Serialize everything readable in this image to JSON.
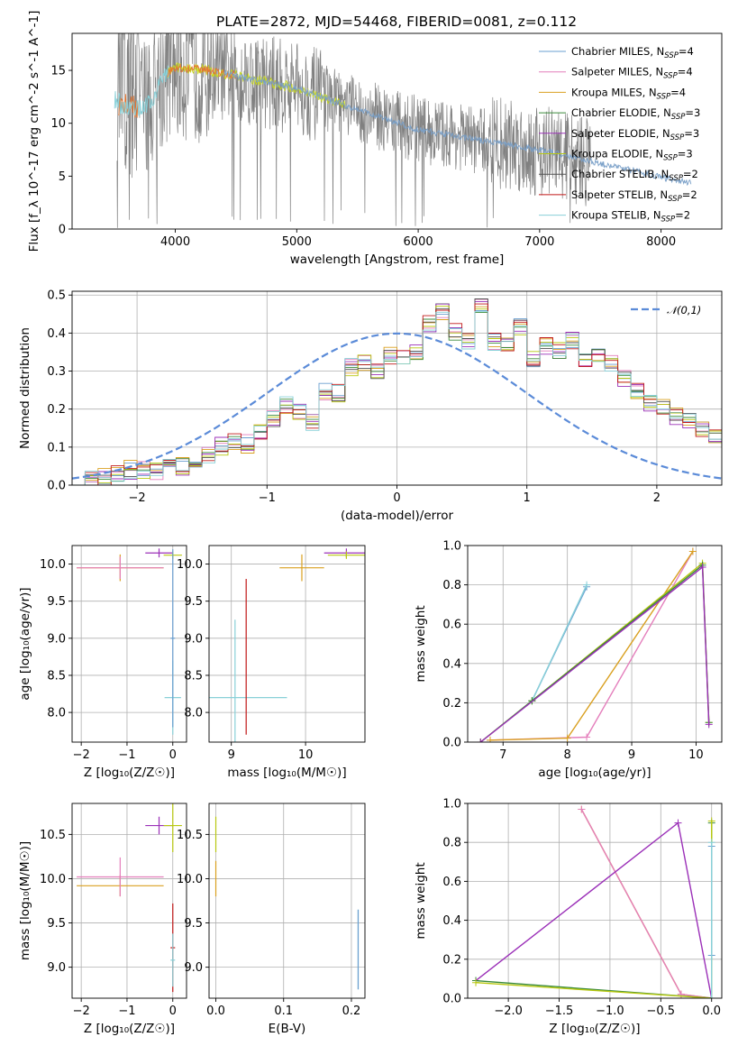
{
  "title": "PLATE=2872, MJD=54468, FIBERID=0081, z=0.112",
  "colors": {
    "spectrum": "#808080",
    "models": [
      "#6a9fd0",
      "#e47fbc",
      "#d9a020",
      "#3a8a3a",
      "#9b30b8",
      "#b8c810",
      "#505050",
      "#c01818",
      "#88d0d8"
    ],
    "highlight_orange": "#e57530",
    "normal": "#5b8bd8"
  },
  "chart_data": [
    {
      "id": "spectrum",
      "type": "line",
      "xlabel": "wavelength [Angstrom, rest frame]",
      "ylabel": "Flux [f_λ 10^-17 erg cm^-2 s^-1 A^-1]",
      "xlim": [
        3150,
        8500
      ],
      "ylim": [
        0,
        18.5
      ],
      "xticks": [
        4000,
        5000,
        6000,
        7000,
        8000
      ],
      "yticks": [
        0,
        5,
        10,
        15
      ],
      "grid": false,
      "legend_position": "top-right",
      "legend": [
        {
          "label": "Chabrier MILES, N",
          "sub": "SSP",
          "suffix": "=4"
        },
        {
          "label": "Salpeter MILES, N",
          "sub": "SSP",
          "suffix": "=4"
        },
        {
          "label": "Kroupa MILES, N",
          "sub": "SSP",
          "suffix": "=4"
        },
        {
          "label": "Chabrier ELODIE, N",
          "sub": "SSP",
          "suffix": "=3"
        },
        {
          "label": "Salpeter ELODIE, N",
          "sub": "SSP",
          "suffix": "=3"
        },
        {
          "label": "Kroupa ELODIE, N",
          "sub": "SSP",
          "suffix": "=3"
        },
        {
          "label": "Chabrier STELIB, N",
          "sub": "SSP",
          "suffix": "=2"
        },
        {
          "label": "Salpeter STELIB, N",
          "sub": "SSP",
          "suffix": "=2"
        },
        {
          "label": "Kroupa STELIB, N",
          "sub": "SSP",
          "suffix": "=2"
        }
      ],
      "model_continuum": {
        "x": [
          3500,
          3550,
          3650,
          3700,
          3800,
          3900,
          4000,
          4200,
          4500,
          5000,
          5500,
          6000,
          6500,
          7000,
          7500,
          8000,
          8250
        ],
        "y": [
          12.3,
          11.8,
          11.4,
          11.6,
          11.9,
          14.5,
          15.3,
          15.1,
          14.5,
          13.3,
          11.3,
          9.4,
          8.4,
          7.5,
          6.2,
          4.9,
          4.4
        ]
      }
    },
    {
      "id": "residual-histogram",
      "type": "line",
      "xlabel": "(data-model)/error",
      "ylabel": "Normed distribution",
      "xlim": [
        -2.5,
        2.5
      ],
      "ylim": [
        0,
        0.51
      ],
      "xticks": [
        -2,
        -1,
        0,
        1,
        2
      ],
      "yticks": [
        0.0,
        0.1,
        0.2,
        0.3,
        0.4,
        0.5
      ],
      "grid": true,
      "legend_position": "top-right",
      "legend": [
        "𝒩(0,1)"
      ],
      "bin_width": 0.1,
      "bin_start": -2.5,
      "hist_values": [
        0.02,
        0.02,
        0.02,
        0.03,
        0.04,
        0.04,
        0.04,
        0.05,
        0.05,
        0.07,
        0.08,
        0.1,
        0.11,
        0.11,
        0.14,
        0.17,
        0.21,
        0.19,
        0.17,
        0.25,
        0.24,
        0.31,
        0.32,
        0.3,
        0.34,
        0.34,
        0.35,
        0.42,
        0.46,
        0.4,
        0.38,
        0.47,
        0.38,
        0.37,
        0.42,
        0.33,
        0.37,
        0.35,
        0.38,
        0.33,
        0.34,
        0.32,
        0.28,
        0.25,
        0.22,
        0.2,
        0.18,
        0.17,
        0.15,
        0.13,
        0.12,
        0.1,
        0.1,
        0.09,
        0.08,
        0.06,
        0.06,
        0.05,
        0.04,
        0.04,
        0.03,
        0.03,
        0.03,
        0.03,
        0.02,
        0.02,
        0.02,
        0.02,
        0.02,
        0.02
      ]
    },
    {
      "id": "age-vs-Z",
      "type": "scatter",
      "xlabel": "Z [log₁₀(Z/Z☉)]",
      "ylabel": "age  [log₁₀(age/yr)]",
      "xlim": [
        -2.2,
        0.3
      ],
      "ylim": [
        7.6,
        10.25
      ],
      "xticks": [
        -2,
        -1,
        0
      ],
      "yticks": [
        8.0,
        8.5,
        9.0,
        9.5,
        10.0
      ],
      "grid": true,
      "points": [
        {
          "x": -1.15,
          "y": 9.95,
          "xerr": 0.95,
          "yerr": 0.18,
          "c": 2
        },
        {
          "x": -1.15,
          "y": 9.95,
          "xerr": 0.95,
          "yerr": 0.15,
          "c": 1
        },
        {
          "x": -0.3,
          "y": 10.15,
          "xerr": 0.3,
          "yerr": 0.06,
          "c": 4
        },
        {
          "x": 0.0,
          "y": 10.12,
          "xerr": 0.2,
          "yerr": 0.05,
          "c": 5
        },
        {
          "x": 0.0,
          "y": 8.2,
          "xerr": 0.18,
          "yerr": 0.5,
          "c": 8
        },
        {
          "x": 0.0,
          "y": 9.0,
          "xerr": 0.05,
          "yerr": 1.2,
          "c": 0
        }
      ]
    },
    {
      "id": "age-vs-mass",
      "type": "scatter",
      "xlabel": "mass [log₁₀(M/M☉)]",
      "ylabel": "",
      "xlim": [
        8.7,
        10.8
      ],
      "ylim": [
        7.6,
        10.25
      ],
      "xticks": [
        9,
        10
      ],
      "yticks": [
        8.0,
        8.5,
        9.0,
        9.5,
        10.0
      ],
      "grid": true,
      "points": [
        {
          "x": 9.05,
          "y": 8.2,
          "xerr": 0.7,
          "yerr": 1.05,
          "c": 8
        },
        {
          "x": 9.2,
          "y": 8.75,
          "xerr": 0.0,
          "yerr": 1.05,
          "c": 7
        },
        {
          "x": 9.95,
          "y": 9.95,
          "xerr": 0.3,
          "yerr": 0.18,
          "c": 2
        },
        {
          "x": 10.55,
          "y": 10.15,
          "xerr": 0.3,
          "yerr": 0.06,
          "c": 4
        },
        {
          "x": 10.55,
          "y": 10.12,
          "xerr": 0.25,
          "yerr": 0.05,
          "c": 5
        }
      ]
    },
    {
      "id": "weight-vs-age",
      "type": "line",
      "xlabel": "age  [log₁₀(age/yr)]",
      "ylabel": "mass weight",
      "xlim": [
        6.45,
        10.4
      ],
      "ylim": [
        0,
        1.0
      ],
      "xticks": [
        7,
        8,
        9,
        10
      ],
      "yticks": [
        0.0,
        0.2,
        0.4,
        0.6,
        0.8,
        1.0
      ],
      "grid": true,
      "series": [
        {
          "c": 0,
          "x": [
            7.45,
            8.3
          ],
          "y": [
            0.21,
            0.79
          ]
        },
        {
          "c": 8,
          "x": [
            7.45,
            8.3
          ],
          "y": [
            0.21,
            0.8
          ]
        },
        {
          "c": 1,
          "x": [
            6.8,
            8.3,
            9.95
          ],
          "y": [
            0.01,
            0.025,
            0.97
          ]
        },
        {
          "c": 2,
          "x": [
            6.8,
            8.0,
            9.95
          ],
          "y": [
            0.01,
            0.02,
            0.97
          ]
        },
        {
          "c": 5,
          "x": [
            6.65,
            7.45,
            10.1,
            10.2
          ],
          "y": [
            0.0,
            0.21,
            0.91,
            0.1
          ]
        },
        {
          "c": 3,
          "x": [
            6.65,
            7.45,
            10.1,
            10.2
          ],
          "y": [
            0.0,
            0.21,
            0.9,
            0.1
          ]
        },
        {
          "c": 4,
          "x": [
            6.65,
            10.1,
            10.2
          ],
          "y": [
            0.0,
            0.89,
            0.09
          ]
        }
      ]
    },
    {
      "id": "mass-vs-Z",
      "type": "scatter",
      "xlabel": "Z [log₁₀(Z/Z☉)]",
      "ylabel": "mass [log₁₀(M/M☉)]",
      "xlim": [
        -2.2,
        0.3
      ],
      "ylim": [
        8.65,
        10.85
      ],
      "xticks": [
        -2,
        -1,
        0
      ],
      "yticks": [
        9.0,
        9.5,
        10.0,
        10.5
      ],
      "grid": true,
      "points": [
        {
          "x": -1.15,
          "y": 9.92,
          "xerr": 0.95,
          "yerr": 0.12,
          "c": 2
        },
        {
          "x": -1.15,
          "y": 10.02,
          "xerr": 0.95,
          "yerr": 0.22,
          "c": 1
        },
        {
          "x": -0.3,
          "y": 10.6,
          "xerr": 0.3,
          "yerr": 0.1,
          "c": 4
        },
        {
          "x": 0.0,
          "y": 10.6,
          "xerr": 0.2,
          "yerr": 0.3,
          "c": 5
        },
        {
          "x": 0.0,
          "y": 9.22,
          "xerr": 0.05,
          "yerr": 0.5,
          "c": 7
        },
        {
          "x": 0.0,
          "y": 9.08,
          "xerr": 0.05,
          "yerr": 0.3,
          "c": 8
        }
      ]
    },
    {
      "id": "mass-vs-ebv",
      "type": "scatter",
      "xlabel": "E(B-V)",
      "ylabel": "",
      "xlim": [
        -0.01,
        0.22
      ],
      "ylim": [
        8.65,
        10.85
      ],
      "xticks": [
        0.0,
        0.1,
        0.2
      ],
      "yticks": [
        9.0,
        9.5,
        10.0,
        10.5
      ],
      "grid": true,
      "points": [
        {
          "x": 0.0,
          "y": 10.5,
          "xerr": 0.0,
          "yerr": 0.2,
          "c": 5
        },
        {
          "x": 0.0,
          "y": 10.0,
          "xerr": 0.0,
          "yerr": 0.2,
          "c": 2
        },
        {
          "x": 0.21,
          "y": 9.2,
          "xerr": 0.0,
          "yerr": 0.45,
          "c": 8
        },
        {
          "x": 0.21,
          "y": 9.2,
          "xerr": 0.0,
          "yerr": 0.45,
          "c": 0
        }
      ]
    },
    {
      "id": "weight-vs-Z",
      "type": "line",
      "xlabel": "Z [log₁₀(Z/Z☉)]",
      "ylabel": "mass weight",
      "xlim": [
        -2.4,
        0.1
      ],
      "ylim": [
        0,
        1.0
      ],
      "xticks": [
        -2.0,
        -1.5,
        -1.0,
        -0.5,
        0.0
      ],
      "yticks": [
        0.0,
        0.2,
        0.4,
        0.6,
        0.8,
        1.0
      ],
      "grid": true,
      "series": [
        {
          "c": 2,
          "x": [
            -1.28,
            -0.3,
            0.0
          ],
          "y": [
            0.97,
            0.02,
            0.0
          ]
        },
        {
          "c": 1,
          "x": [
            -1.28,
            -0.3,
            0.0
          ],
          "y": [
            0.97,
            0.02,
            0.0
          ]
        },
        {
          "c": 4,
          "x": [
            -2.32,
            -0.33,
            0.0
          ],
          "y": [
            0.09,
            0.9,
            0.0
          ]
        },
        {
          "c": 3,
          "x": [
            -2.32,
            0.0,
            0.0
          ],
          "y": [
            0.09,
            0.0,
            0.9
          ]
        },
        {
          "c": 5,
          "x": [
            -2.32,
            0.0,
            0.0
          ],
          "y": [
            0.08,
            0.0,
            0.91
          ]
        },
        {
          "c": 0,
          "x": [
            0.0,
            0.0
          ],
          "y": [
            0.22,
            0.78
          ]
        },
        {
          "c": 8,
          "x": [
            0.0,
            0.0
          ],
          "y": [
            0.0,
            0.8
          ]
        }
      ]
    }
  ]
}
